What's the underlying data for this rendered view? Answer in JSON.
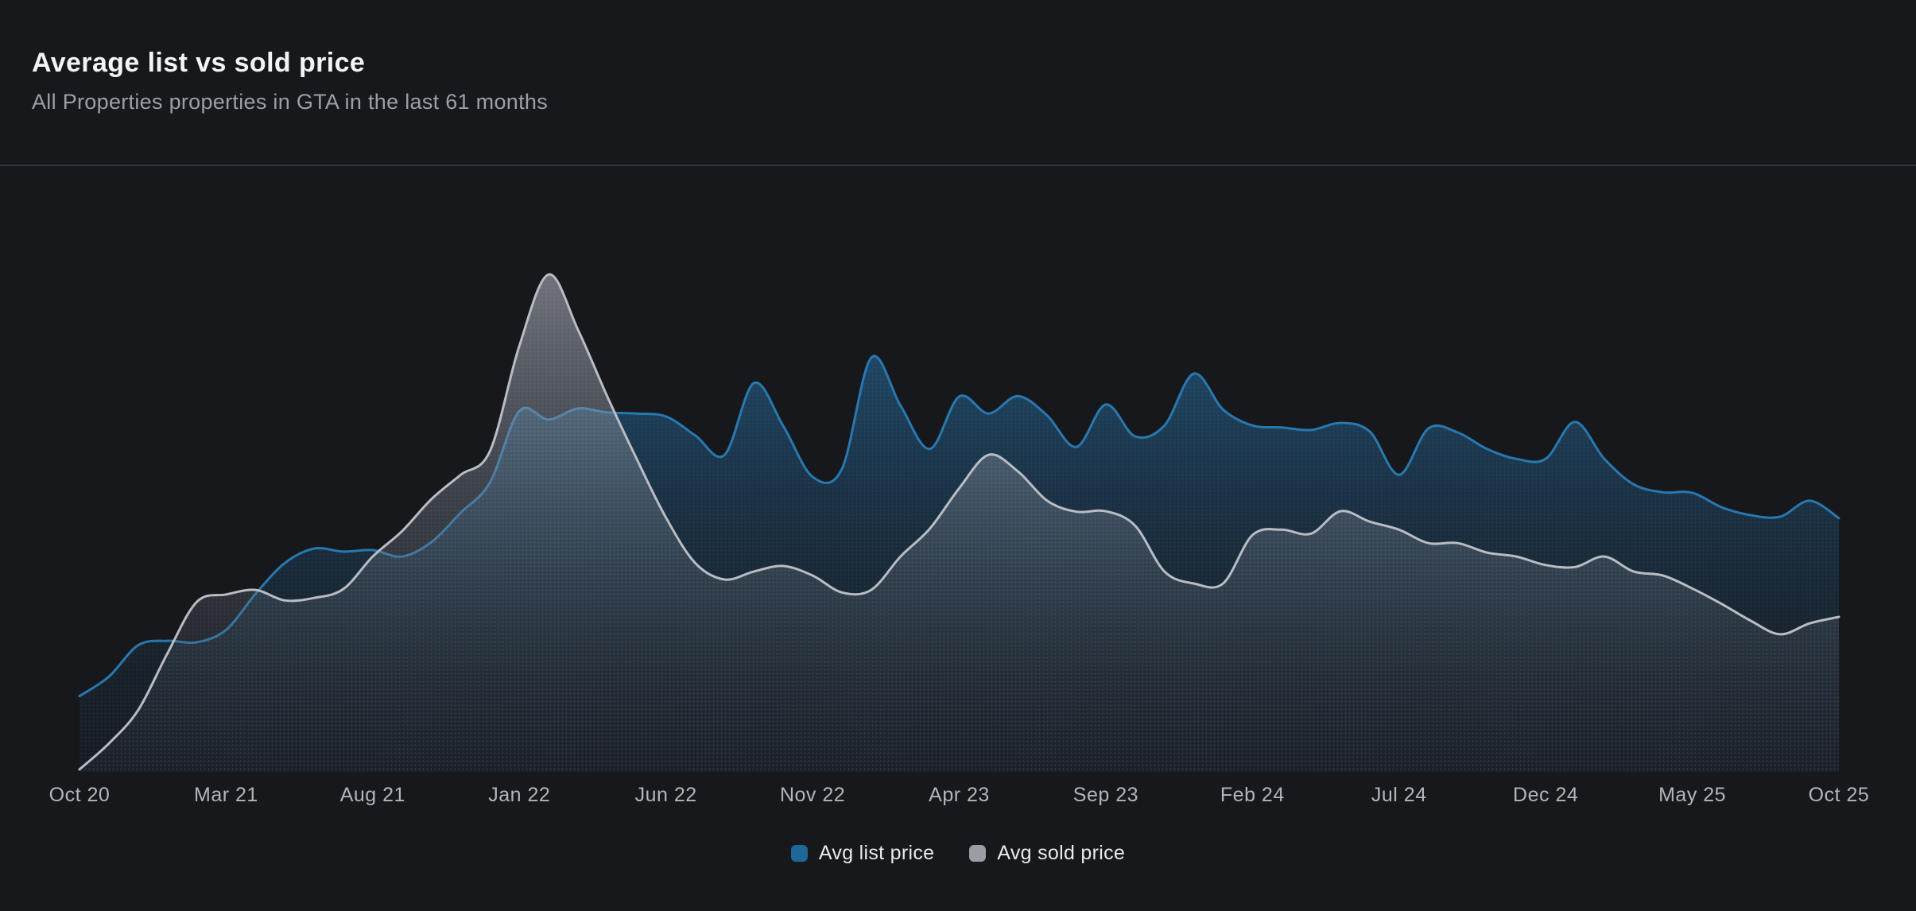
{
  "header": {
    "title": "Average list vs sold price",
    "subtitle": "All Properties properties in GTA in the last 61 months"
  },
  "legend": {
    "items": [
      {
        "label": "Avg list price",
        "color": "#1d6897"
      },
      {
        "label": "Avg sold price",
        "color": "#9b9ca4"
      }
    ]
  },
  "colors": {
    "background": "#17181c",
    "divider": "#2c3340",
    "title_text": "#f3f4f6",
    "subtitle_text": "#9aa0a9",
    "tick_text": "#b1b5bd",
    "legend_text": "#e8eaec",
    "list_line": "#2878b0",
    "sold_line": "#b9bcc3"
  },
  "chart_data": {
    "type": "area",
    "title": "Average list vs sold price",
    "subtitle": "All Properties properties in GTA in the last 61 months",
    "grid": false,
    "legend_position": "bottom-center",
    "x_tick_labels": [
      "Oct 20",
      "Mar 21",
      "Aug 21",
      "Jan 22",
      "Jun 22",
      "Nov 22",
      "Apr 23",
      "Sep 23",
      "Feb 24",
      "Jul 24",
      "Dec 24",
      "May 25",
      "Oct 25"
    ],
    "x_months": [
      "2020-10",
      "2020-11",
      "2020-12",
      "2021-01",
      "2021-02",
      "2021-03",
      "2021-04",
      "2021-05",
      "2021-06",
      "2021-07",
      "2021-08",
      "2021-09",
      "2021-10",
      "2021-11",
      "2021-12",
      "2022-01",
      "2022-02",
      "2022-03",
      "2022-04",
      "2022-05",
      "2022-06",
      "2022-07",
      "2022-08",
      "2022-09",
      "2022-10",
      "2022-11",
      "2022-12",
      "2023-01",
      "2023-02",
      "2023-03",
      "2023-04",
      "2023-05",
      "2023-06",
      "2023-07",
      "2023-08",
      "2023-09",
      "2023-10",
      "2023-11",
      "2023-12",
      "2024-01",
      "2024-02",
      "2024-03",
      "2024-04",
      "2024-05",
      "2024-06",
      "2024-07",
      "2024-08",
      "2024-09",
      "2024-10",
      "2024-11",
      "2024-12",
      "2025-01",
      "2025-02",
      "2025-03",
      "2025-04",
      "2025-05",
      "2025-06",
      "2025-07",
      "2025-08",
      "2025-09",
      "2025-10"
    ],
    "y_axis": "hidden in chart; values expressed as percent of plot height (0 = chart floor, 100 = highest point = Avg sold price Feb 2022)",
    "ylim": [
      0,
      100
    ],
    "series": [
      {
        "name": "Avg list price",
        "line_color": "#2878b0",
        "values_pct": [
          15.2,
          19.1,
          25.4,
          26.3,
          26.0,
          28.5,
          35.7,
          41.9,
          44.8,
          44.2,
          44.5,
          43.2,
          46.1,
          52.0,
          58.1,
          72.4,
          70.7,
          72.9,
          72.1,
          71.9,
          71.3,
          67.5,
          63.6,
          78.0,
          69.4,
          59.2,
          60.8,
          83.1,
          73.5,
          64.8,
          75.3,
          71.9,
          75.4,
          71.5,
          65.2,
          73.7,
          67.3,
          69.5,
          79.9,
          72.7,
          69.5,
          69.1,
          68.6,
          70.0,
          68.3,
          59.6,
          68.9,
          68.1,
          64.8,
          62.8,
          62.8,
          70.2,
          62.8,
          57.7,
          56.1,
          56.0,
          53.1,
          51.5,
          51.2,
          54.4,
          50.9
        ]
      },
      {
        "name": "Avg sold price",
        "line_color": "#b9bcc3",
        "values_pct": [
          0.5,
          5.7,
          12.4,
          23.8,
          34.1,
          35.6,
          36.5,
          34.4,
          34.9,
          36.7,
          43.2,
          48.3,
          54.7,
          59.6,
          64.4,
          85.5,
          99.8,
          88.7,
          75.3,
          62.8,
          51.0,
          41.9,
          38.6,
          40.2,
          41.3,
          39.4,
          36.0,
          36.5,
          43.2,
          48.8,
          56.9,
          63.6,
          60.3,
          54.4,
          52.2,
          52.3,
          49.4,
          40.2,
          37.8,
          37.8,
          47.5,
          48.6,
          47.8,
          52.3,
          50.2,
          48.6,
          45.9,
          45.9,
          44.0,
          43.2,
          41.5,
          41.1,
          43.2,
          40.2,
          39.4,
          36.8,
          33.7,
          30.3,
          27.6,
          29.8,
          31.1
        ]
      }
    ]
  }
}
